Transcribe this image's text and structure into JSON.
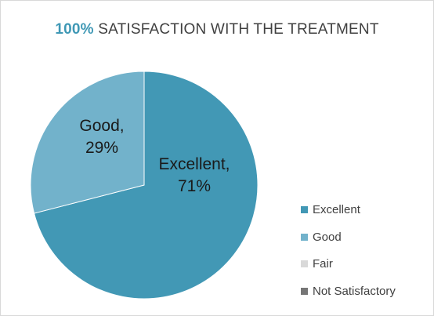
{
  "title": {
    "accent": "100%",
    "rest": " SATISFACTION  WITH THE TREATMENT",
    "accent_color": "#3f98b5"
  },
  "chart_data": {
    "type": "pie",
    "title": "100% SATISFACTION  WITH THE TREATMENT",
    "slices": [
      {
        "label": "Excellent",
        "value": 71,
        "value_label": "71%",
        "color": "#4298b5"
      },
      {
        "label": "Good",
        "value": 29,
        "value_label": "29%",
        "color": "#72b2cb"
      },
      {
        "label": "Fair",
        "value": 0,
        "value_label": "",
        "color": "#d9d9d9"
      },
      {
        "label": "Not Satisfactory",
        "value": 0,
        "value_label": "",
        "color": "#767676"
      }
    ],
    "legend_position": "right",
    "start": "top",
    "direction": "clockwise",
    "data_labels": "category name and percentage, inside"
  }
}
